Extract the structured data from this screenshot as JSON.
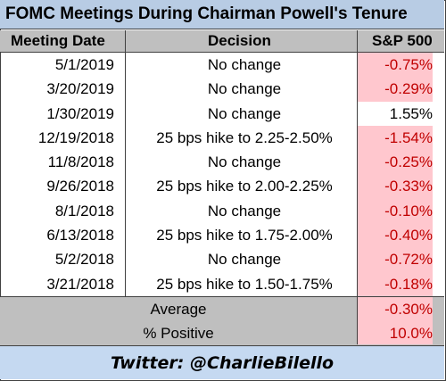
{
  "title": "FOMC Meetings During Chairman Powell's Tenure",
  "headers": {
    "date": "Meeting Date",
    "decision": "Decision",
    "sp500": "S&P 500"
  },
  "rows": [
    {
      "date": "5/1/2019",
      "decision": "No change",
      "sp500": "-0.75%"
    },
    {
      "date": "3/20/2019",
      "decision": "No change",
      "sp500": "-0.29%"
    },
    {
      "date": "1/30/2019",
      "decision": "No change",
      "sp500": "1.55%"
    },
    {
      "date": "12/19/2018",
      "decision": "25 bps hike to 2.25-2.50%",
      "sp500": "-1.54%"
    },
    {
      "date": "11/8/2018",
      "decision": "No change",
      "sp500": "-0.25%"
    },
    {
      "date": "9/26/2018",
      "decision": "25 bps hike to 2.00-2.25%",
      "sp500": "-0.33%"
    },
    {
      "date": "8/1/2018",
      "decision": "No change",
      "sp500": "-0.10%"
    },
    {
      "date": "6/13/2018",
      "decision": "25 bps hike to 1.75-2.00%",
      "sp500": "-0.40%"
    },
    {
      "date": "5/2/2018",
      "decision": "No change",
      "sp500": "-0.72%"
    },
    {
      "date": "3/21/2018",
      "decision": "25 bps hike to 1.50-1.75%",
      "sp500": "-0.18%"
    }
  ],
  "summary": {
    "average_label": "Average",
    "average_value": "-0.30%",
    "positive_label": "% Positive",
    "positive_value": "10.0%"
  },
  "footer": "Twitter: @CharlieBilello",
  "colors": {
    "title_bg": "#b8cce4",
    "header_bg": "#bfbfbf",
    "negative_fill": "#ffc7ce",
    "negative_text": "#c00000",
    "footer_bg": "#c5d9f1"
  }
}
